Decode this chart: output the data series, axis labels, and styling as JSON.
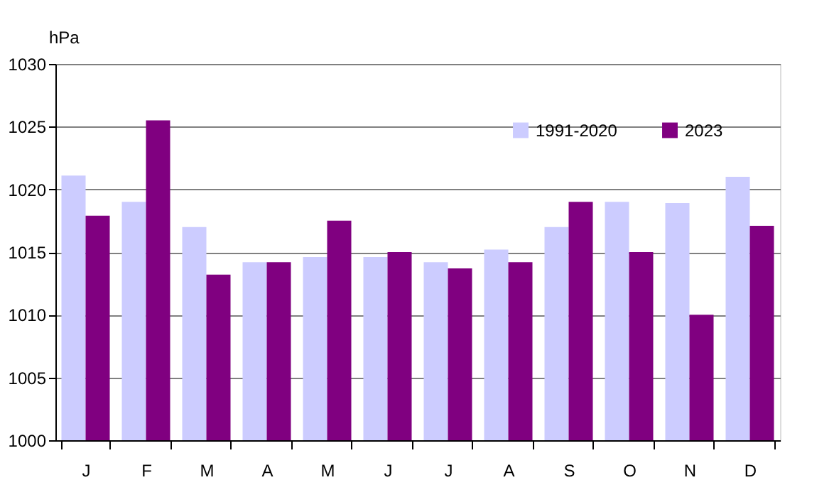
{
  "chart_data": {
    "type": "bar",
    "ylabel": "hPa",
    "categories": [
      "J",
      "F",
      "M",
      "A",
      "M",
      "J",
      "J",
      "A",
      "S",
      "O",
      "N",
      "D"
    ],
    "series": [
      {
        "name": "1991-2020",
        "color": "#ccccff",
        "values": [
          1021.1,
          1019.0,
          1017.0,
          1014.2,
          1014.6,
          1014.6,
          1014.2,
          1015.2,
          1017.0,
          1019.0,
          1018.9,
          1021.0
        ]
      },
      {
        "name": "2023",
        "color": "#800080",
        "values": [
          1017.9,
          1025.5,
          1013.2,
          1014.2,
          1017.5,
          1015.0,
          1013.7,
          1014.2,
          1019.0,
          1015.0,
          1010.0,
          1017.1
        ]
      }
    ],
    "ylim": [
      1000,
      1030
    ],
    "yticks": [
      1000,
      1005,
      1010,
      1015,
      1020,
      1025,
      1030
    ],
    "grid": "y",
    "legend": "top right"
  }
}
